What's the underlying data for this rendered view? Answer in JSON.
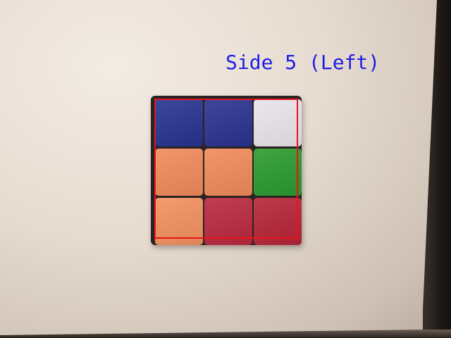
{
  "overlay": {
    "label": "Side 5 (Left)",
    "label_color": "#1d1de6",
    "box_color": "#e8141c"
  },
  "cube_face": {
    "rows": [
      [
        {
          "color_name": "blue",
          "hex": "#26338f"
        },
        {
          "color_name": "blue",
          "hex": "#2a3190"
        },
        {
          "color_name": "white",
          "hex": "#e9e4ea"
        }
      ],
      [
        {
          "color_name": "orange",
          "hex": "#f08a5a"
        },
        {
          "color_name": "orange",
          "hex": "#f08a58"
        },
        {
          "color_name": "green",
          "hex": "#2a9a2e"
        }
      ],
      [
        {
          "color_name": "orange",
          "hex": "#f2905e"
        },
        {
          "color_name": "red",
          "hex": "#b9283d"
        },
        {
          "color_name": "red",
          "hex": "#b52436"
        }
      ]
    ]
  }
}
